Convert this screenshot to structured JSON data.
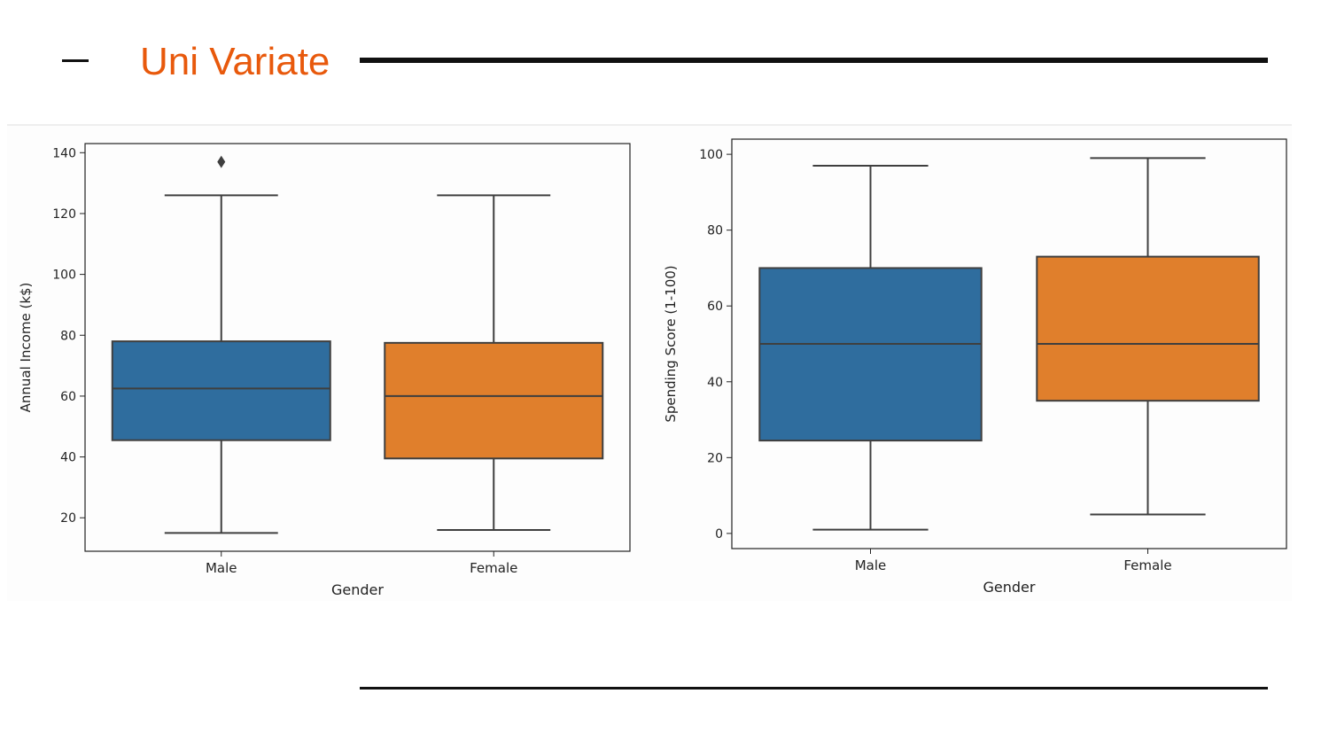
{
  "header": {
    "title": "Uni Variate"
  },
  "chart_data": [
    {
      "type": "box",
      "xlabel": "Gender",
      "ylabel": "Annual Income (k$)",
      "ylim": [
        9,
        143
      ],
      "yticks": [
        20,
        40,
        60,
        80,
        100,
        120,
        140
      ],
      "categories": [
        "Male",
        "Female"
      ],
      "boxes": [
        {
          "category": "Male",
          "whisker_low": 15,
          "q1": 45.5,
          "median": 62.5,
          "q3": 78,
          "whisker_high": 126,
          "outliers": [
            137
          ],
          "color": "#2f6d9e"
        },
        {
          "category": "Female",
          "whisker_low": 16,
          "q1": 39.5,
          "median": 60,
          "q3": 77.5,
          "whisker_high": 126,
          "outliers": [],
          "color": "#e07f2c"
        }
      ],
      "grid": false
    },
    {
      "type": "box",
      "xlabel": "Gender",
      "ylabel": "Spending Score (1-100)",
      "ylim": [
        -4,
        104
      ],
      "yticks": [
        0,
        20,
        40,
        60,
        80,
        100
      ],
      "categories": [
        "Male",
        "Female"
      ],
      "boxes": [
        {
          "category": "Male",
          "whisker_low": 1,
          "q1": 24.5,
          "median": 50,
          "q3": 70,
          "whisker_high": 97,
          "outliers": [],
          "color": "#2f6d9e"
        },
        {
          "category": "Female",
          "whisker_low": 5,
          "q1": 35,
          "median": 50,
          "q3": 73,
          "whisker_high": 99,
          "outliers": [],
          "color": "#e07f2c"
        }
      ],
      "grid": false
    }
  ]
}
